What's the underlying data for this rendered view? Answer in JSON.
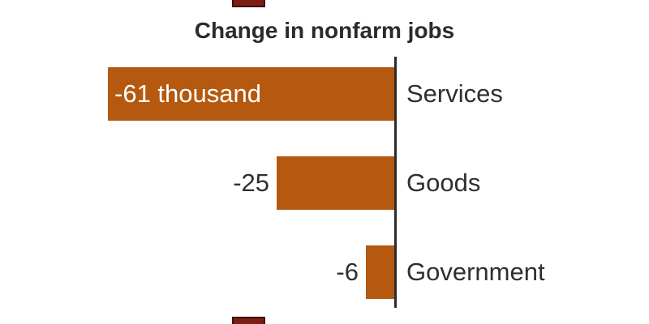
{
  "chart_data": {
    "type": "bar",
    "orientation": "horizontal",
    "title": "Change in nonfarm jobs",
    "unit": "thousand",
    "categories": [
      "Services",
      "Goods",
      "Government"
    ],
    "values": [
      -61,
      -25,
      -6
    ],
    "value_labels": [
      "-61 thousand",
      "-25",
      "-6"
    ],
    "value_label_inside": [
      true,
      false,
      false
    ],
    "xlim": [
      -61,
      0
    ],
    "baseline": 0,
    "grid": false,
    "legend": "none",
    "bar_color": "#b4590f",
    "axis_color": "#2b2b2b",
    "title_color": "#2b2b2b",
    "label_color": "#2f2f2f",
    "inside_label_color": "#ffffff",
    "background_color": "#ffffff"
  },
  "decorations": {
    "crop_mark_color": "#7c1e13",
    "crop_mark_border_color": "#3f0e08"
  }
}
